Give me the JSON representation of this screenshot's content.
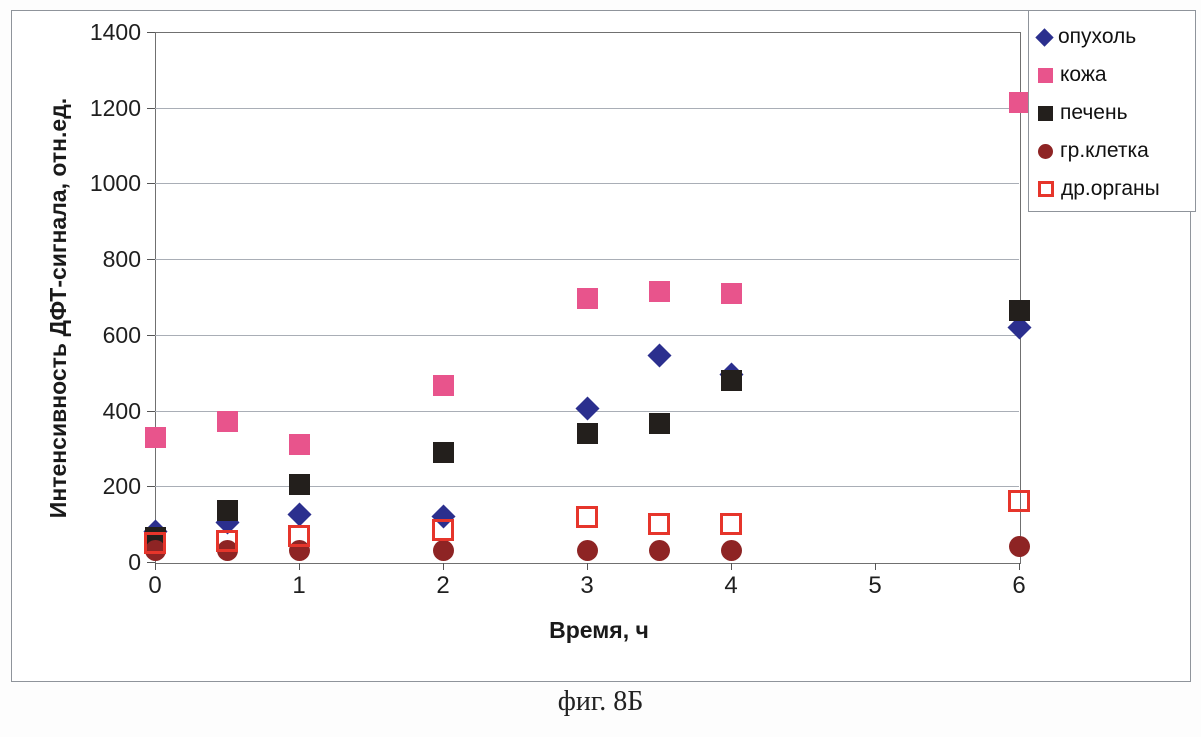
{
  "figure": {
    "caption": "фиг. 8Б"
  },
  "chart_data": {
    "type": "scatter",
    "title": "",
    "xlabel": "Время, ч",
    "ylabel": "Интенсивность ДФТ-сигнала, отн.ед.",
    "xlim": [
      0,
      6
    ],
    "ylim": [
      0,
      1400
    ],
    "x_ticks": [
      0,
      1,
      2,
      3,
      4,
      5,
      6
    ],
    "y_ticks": [
      0,
      200,
      400,
      600,
      800,
      1000,
      1200,
      1400
    ],
    "grid": "horizontal",
    "legend_position": "top-right",
    "x": [
      0,
      0.5,
      1,
      2,
      3,
      3.5,
      4,
      6
    ],
    "series": [
      {
        "name": "опухоль",
        "marker": "diamond",
        "color": "#2b2f8e",
        "values": [
          80,
          105,
          125,
          120,
          405,
          545,
          495,
          620
        ]
      },
      {
        "name": "кожа",
        "marker": "square",
        "color": "#e8548c",
        "values": [
          330,
          370,
          310,
          465,
          695,
          715,
          710,
          1215
        ]
      },
      {
        "name": "печень",
        "marker": "square",
        "color": "#231f1c",
        "values": [
          65,
          135,
          205,
          290,
          340,
          365,
          480,
          665
        ]
      },
      {
        "name": "гр.клетка",
        "marker": "circle",
        "color": "#8e2424",
        "values": [
          30,
          30,
          30,
          30,
          30,
          30,
          30,
          40
        ]
      },
      {
        "name": "др.органы",
        "marker": "open-square",
        "color": "#e6352b",
        "values": [
          50,
          55,
          70,
          85,
          120,
          100,
          100,
          160
        ]
      }
    ]
  }
}
